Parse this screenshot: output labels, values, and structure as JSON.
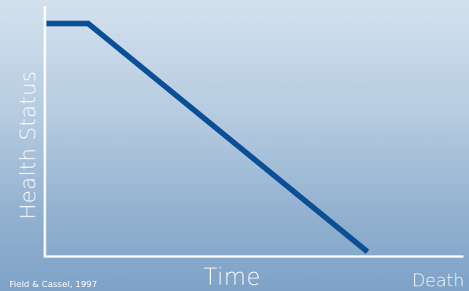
{
  "chart_data": {
    "type": "line",
    "title": "",
    "xlabel": "Time",
    "ylabel": "Health Status",
    "x_end_label": "Death",
    "source": "Field & Cassel, 1997",
    "grid": false,
    "legend": "none",
    "series": [
      {
        "x": [
          0,
          0.13,
          1
        ],
        "values": [
          1,
          1,
          0
        ]
      }
    ],
    "xlim": [
      0,
      1
    ],
    "ylim": [
      0,
      1
    ],
    "line_color": "#0b4f97",
    "axis_color": "#ffffff"
  }
}
